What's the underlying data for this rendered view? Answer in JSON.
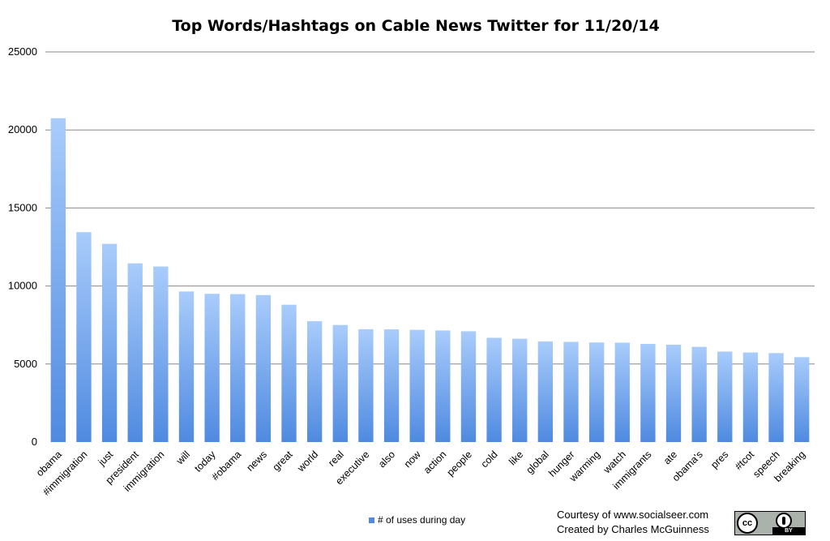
{
  "chart_data": {
    "type": "bar",
    "title": "Top Words/Hashtags on Cable News Twitter for 11/20/14",
    "categories": [
      "obama",
      "#immigration",
      "just",
      "president",
      "immigration",
      "will",
      "today",
      "#obama",
      "news",
      "great",
      "world",
      "real",
      "executive",
      "also",
      "now",
      "action",
      "people",
      "cold",
      "like",
      "global",
      "hunger",
      "warming",
      "watch",
      "immigrants",
      "ate",
      "obama's",
      "pres",
      "#tcot",
      "speech",
      "breaking"
    ],
    "series": [
      {
        "name": "# of uses during day",
        "values": [
          20750,
          13450,
          12700,
          11450,
          11250,
          9650,
          9500,
          9480,
          9420,
          8800,
          7750,
          7500,
          7230,
          7220,
          7190,
          7150,
          7100,
          6680,
          6620,
          6450,
          6420,
          6380,
          6370,
          6290,
          6240,
          6100,
          5800,
          5740,
          5700,
          5440
        ]
      }
    ],
    "ylim": [
      0,
      25000
    ],
    "yticks": [
      "0",
      "5000",
      "10000",
      "15000",
      "20000",
      "25000"
    ],
    "grid": true,
    "legend_position": "bottom",
    "bar_color": "#4f8ae0",
    "bar_color_light": "#a9ccfb"
  },
  "credits": {
    "line1": "Courtesy of www.socialseer.com",
    "line2": "Created by Charles McGuinness"
  },
  "license_badge": {
    "icon": "creative-commons-by-icon",
    "cc_label": "cc",
    "by_label": "BY"
  }
}
